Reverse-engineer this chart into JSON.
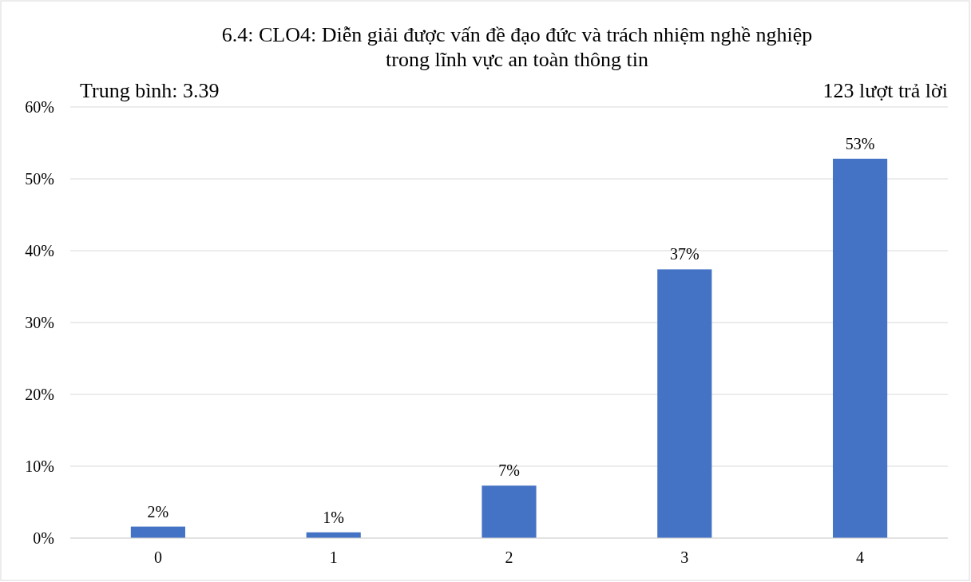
{
  "chart_data": {
    "type": "bar",
    "title": "6.4: CLO4: Diễn giải được vấn đề đạo đức và trách nhiệm nghề nghiệp\ntrong lĩnh vực an toàn thông tin",
    "annotations": [
      "Trung bình: 3.39",
      "123 lượt trả lời"
    ],
    "categories": [
      "0",
      "1",
      "2",
      "3",
      "4"
    ],
    "values": [
      1.6,
      0.8,
      7.3,
      37.4,
      52.8
    ],
    "value_labels": [
      "2%",
      "1%",
      "7%",
      "37%",
      "53%"
    ],
    "color": "#4472c4",
    "ylim": [
      0,
      60
    ],
    "yticks": [
      {
        "value": 0,
        "label": "0%"
      },
      {
        "value": 10,
        "label": "10%"
      },
      {
        "value": 20,
        "label": "20%"
      },
      {
        "value": 30,
        "label": "30%"
      },
      {
        "value": 40,
        "label": "40%"
      },
      {
        "value": 50,
        "label": "50%"
      },
      {
        "value": 60,
        "label": "60%"
      }
    ],
    "grid": "y"
  }
}
